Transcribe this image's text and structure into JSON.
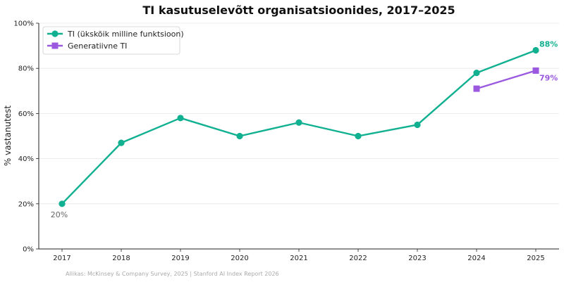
{
  "chart_data": {
    "type": "line",
    "title": "TI kasutuselevõtt organisatsioonides, 2017–2025",
    "xlabel": "",
    "ylabel": "% vastanutest",
    "categories": [
      "2017",
      "2018",
      "2019",
      "2020",
      "2021",
      "2022",
      "2023",
      "2024",
      "2025"
    ],
    "ylim": [
      0,
      100
    ],
    "yticks": [
      0,
      20,
      40,
      60,
      80,
      100
    ],
    "ytick_labels": [
      "0%",
      "20%",
      "40%",
      "60%",
      "80%",
      "100%"
    ],
    "grid": "horizontal",
    "legend_position": "top-left",
    "series": [
      {
        "name": "TI (ükskõik milline funktsioon)",
        "color": "#10b090",
        "marker": "circle",
        "values": [
          20,
          47,
          58,
          50,
          56,
          50,
          55,
          78,
          88
        ]
      },
      {
        "name": "Generatiivne TI",
        "color": "#9b59e0",
        "marker": "square",
        "values": [
          null,
          null,
          null,
          null,
          null,
          null,
          null,
          71,
          79
        ]
      }
    ],
    "annotations": [
      {
        "series": 0,
        "index": 0,
        "text": "20%",
        "color": "#666666"
      },
      {
        "series": 0,
        "index": 8,
        "text": "88%",
        "color": "#10b090"
      },
      {
        "series": 1,
        "index": 8,
        "text": "79%",
        "color": "#9b59e0"
      }
    ],
    "source": "Allikas: McKinsey & Company Survey, 2025 | Stanford AI Index Report 2026"
  }
}
